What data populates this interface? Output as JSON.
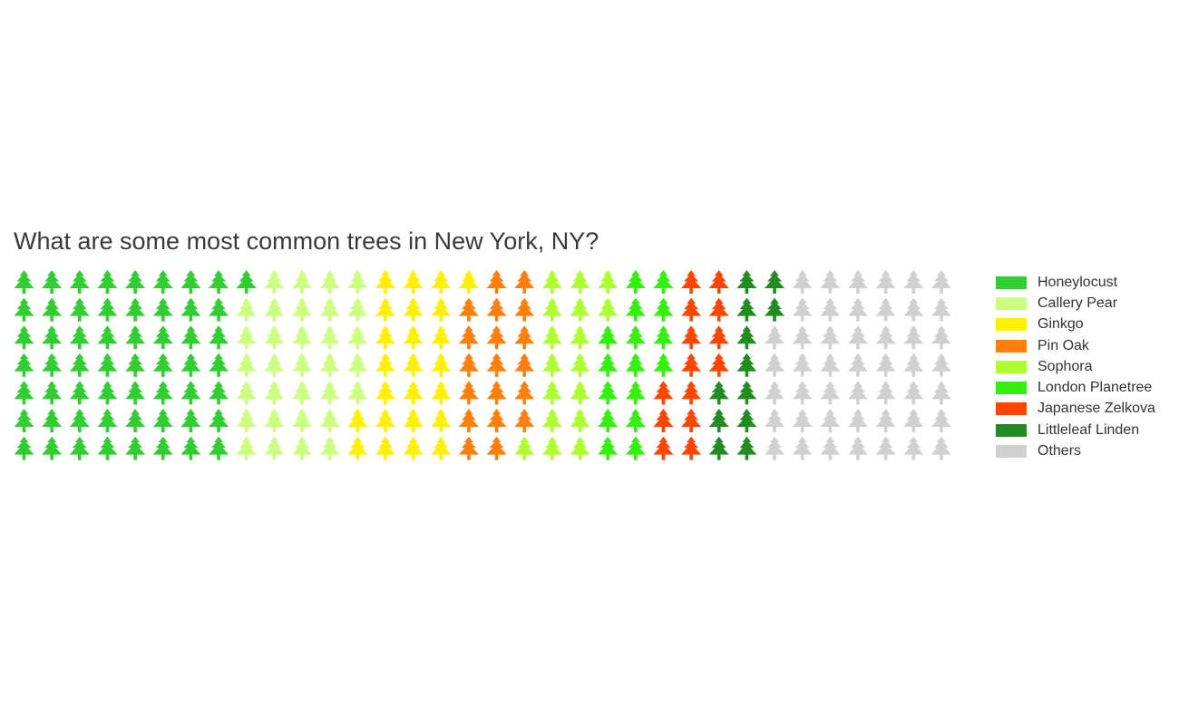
{
  "chart_data": {
    "type": "waffle",
    "title": "What are some most common trees in New York, NY?",
    "icon": "tree-icon",
    "rows": 7,
    "columns": 34,
    "fill_order": "column-major",
    "legend_position": "right",
    "categories": [
      {
        "name": "Honeylocust",
        "count": 57,
        "color": "#32CD32"
      },
      {
        "name": "Callery Pear",
        "count": 32,
        "color": "#CCFF80"
      },
      {
        "name": "Ginkgo",
        "count": 24,
        "color": "#FFF000"
      },
      {
        "name": "Pin Oak",
        "count": 19,
        "color": "#FF7F0E"
      },
      {
        "name": "Sophora",
        "count": 17,
        "color": "#ADFF2F"
      },
      {
        "name": "London Planetree",
        "count": 16,
        "color": "#34F00E"
      },
      {
        "name": "Japanese Zelkova",
        "count": 14,
        "color": "#FF4500"
      },
      {
        "name": "Littleleaf Linden",
        "count": 12,
        "color": "#228B22"
      },
      {
        "name": "Others",
        "count": 47,
        "color": "#D0D0D0"
      }
    ]
  }
}
